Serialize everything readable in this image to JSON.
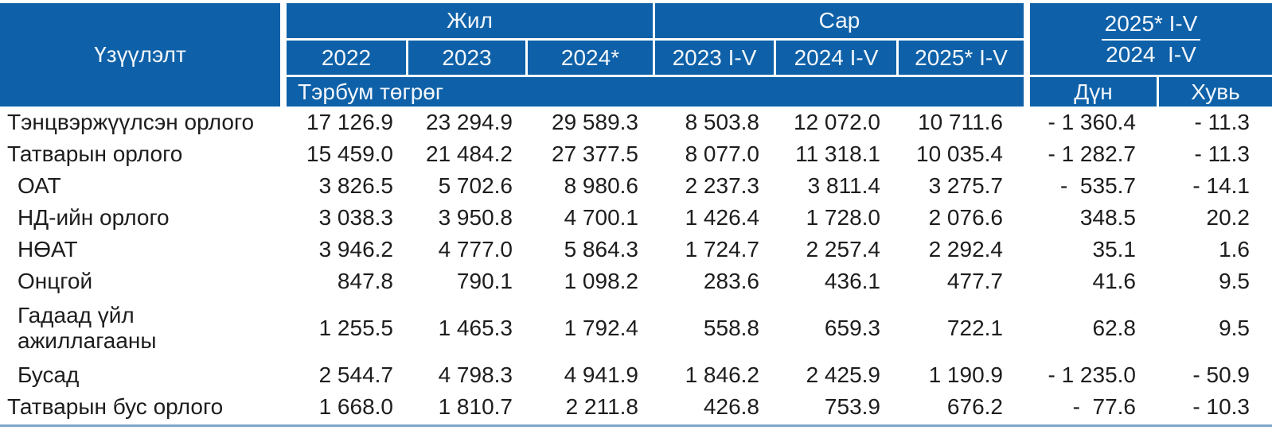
{
  "chart_data": {
    "type": "table",
    "unit": "Тэрбум төгрөг",
    "header": {
      "indicator": "Үзүүлэлт",
      "group_year": "Жил",
      "group_month": "Сар",
      "year_columns": [
        "2022",
        "2023",
        "2024*"
      ],
      "month_columns": [
        "2023 I-V",
        "2024 I-V",
        "2025* I-V"
      ],
      "ratio_numerator": "2025* I-V",
      "ratio_denominator": "2024  I-V",
      "diff_label": "Дүн",
      "pct_label": "Хувь"
    },
    "rows": [
      {
        "label": "Тэнцвэржүүлсэн орлого",
        "indent": false,
        "two_line": false,
        "values": [
          "17 126.9",
          "23 294.9",
          "29 589.3",
          "8 503.8",
          "12 072.0",
          "10 711.6",
          "- 1 360.4",
          "- 11.3"
        ]
      },
      {
        "label": "Татварын орлого",
        "indent": false,
        "two_line": false,
        "values": [
          "15 459.0",
          "21 484.2",
          "27 377.5",
          "8 077.0",
          "11 318.1",
          "10 035.4",
          "- 1 282.7",
          "- 11.3"
        ]
      },
      {
        "label": "ОАТ",
        "indent": true,
        "two_line": false,
        "values": [
          "3 826.5",
          "5 702.6",
          "8 980.6",
          "2 237.3",
          "3 811.4",
          "3 275.7",
          "-  535.7",
          "- 14.1"
        ]
      },
      {
        "label": "НД-ийн орлого",
        "indent": true,
        "two_line": false,
        "values": [
          "3 038.3",
          "3 950.8",
          "4 700.1",
          "1 426.4",
          "1 728.0",
          "2 076.6",
          "348.5",
          "20.2"
        ]
      },
      {
        "label": "НӨАТ",
        "indent": true,
        "two_line": false,
        "values": [
          "3 946.2",
          "4 777.0",
          "5 864.3",
          "1 724.7",
          "2 257.4",
          "2 292.4",
          "35.1",
          "1.6"
        ]
      },
      {
        "label": "Онцгой",
        "indent": true,
        "two_line": false,
        "values": [
          "847.8",
          "790.1",
          "1 098.2",
          "283.6",
          "436.1",
          "477.7",
          "41.6",
          "9.5"
        ]
      },
      {
        "label": "Гадаад үйл\nажиллагааны",
        "indent": true,
        "two_line": true,
        "values": [
          "1 255.5",
          "1 465.3",
          "1 792.4",
          "558.8",
          "659.3",
          "722.1",
          "62.8",
          "9.5"
        ]
      },
      {
        "label": "Бусад",
        "indent": true,
        "two_line": false,
        "values": [
          "2 544.7",
          "4 798.3",
          "4 941.9",
          "1 846.2",
          "2 425.9",
          "1 190.9",
          "- 1 235.0",
          "- 50.9"
        ]
      },
      {
        "label": "Татварын бус орлого",
        "indent": false,
        "two_line": false,
        "values": [
          "1 668.0",
          "1 810.7",
          "2 211.8",
          "426.8",
          "753.9",
          "676.2",
          "-  77.6",
          "- 10.3"
        ]
      }
    ],
    "colors": {
      "header_bg": "#0e61a8",
      "header_text": "#f2f6fb",
      "body_text": "#1d1d1f",
      "bottom_rule": "#7da6c9"
    }
  }
}
